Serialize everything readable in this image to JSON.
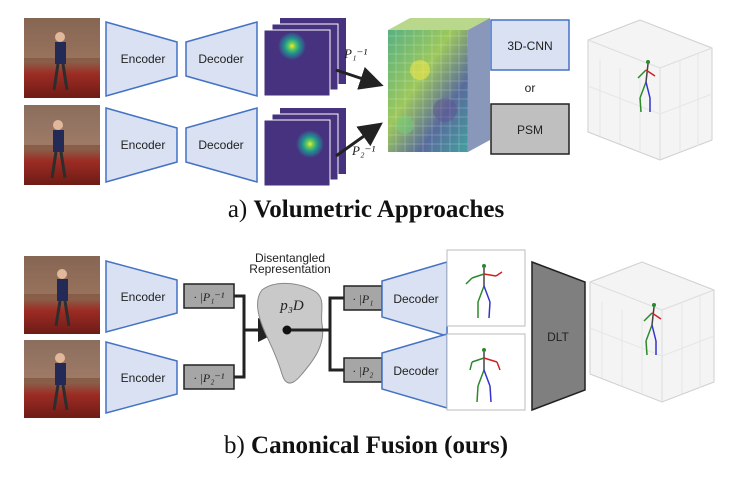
{
  "volumetric": {
    "encoder_label": "Encoder",
    "decoder_label": "Decoder",
    "proj1": "P₁⁻¹",
    "proj2": "P₂⁻¹",
    "cnn_label": "3D-CNN",
    "or_label": "or",
    "psm_label": "PSM",
    "caption_prefix": "a) ",
    "caption_bold": "Volumetric Approaches"
  },
  "canonical": {
    "encoder_label": "Encoder",
    "decoder_label": "Decoder",
    "inv1": "· |P₁⁻¹",
    "inv2": "· |P₂⁻¹",
    "fwd1": "· |P₁",
    "fwd2": "· |P₂",
    "disentangled_line1": "Disentangled",
    "disentangled_line2": "Representation",
    "p3d": "p₃D",
    "dlt_label": "DLT",
    "caption_prefix": "b) ",
    "caption_bold": "Canonical Fusion (ours)"
  },
  "colors": {
    "block_fill": "#d9e1f2",
    "block_stroke": "#4472c4",
    "op_fill": "#a6a6a6",
    "dlt_fill": "#7f7f7f",
    "psm_fill": "#bfbfbf",
    "heatmap_bg": "#46327e"
  }
}
